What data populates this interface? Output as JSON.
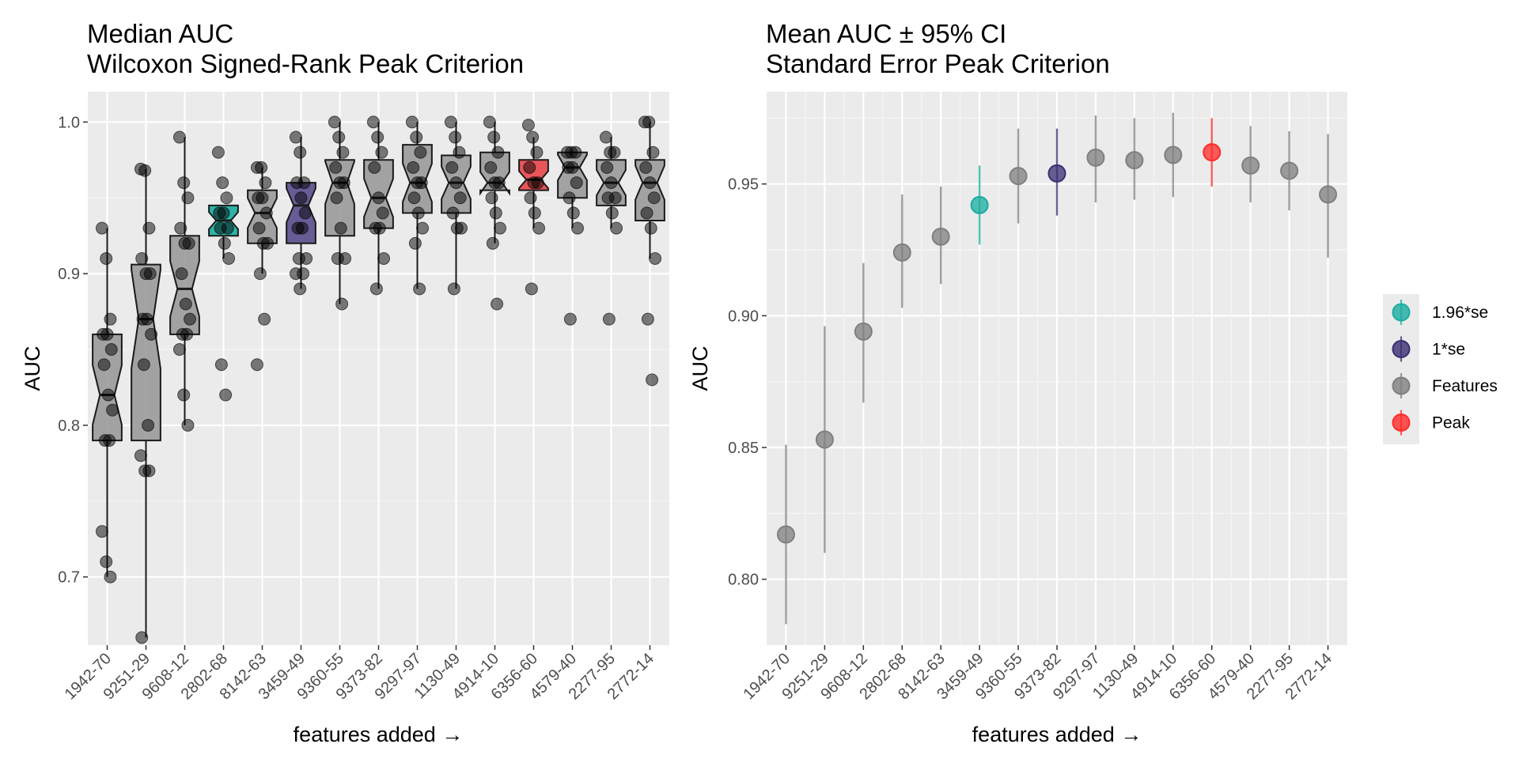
{
  "chart_data": [
    {
      "type": "boxplot",
      "title": "Median AUC",
      "subtitle": "Wilcoxon Signed-Rank Peak Criterion",
      "xlabel": "features added →",
      "ylabel": "AUC",
      "ylim": [
        0.655,
        1.02
      ],
      "yticks": [
        "0.7",
        "0.8",
        "0.9",
        "1.0"
      ],
      "categories": [
        "1942-70",
        "9251-29",
        "9608-12",
        "2802-68",
        "8142-63",
        "3459-49",
        "9360-55",
        "9373-82",
        "9297-97",
        "1130-49",
        "4914-10",
        "6356-60",
        "4579-40",
        "2277-95",
        "2772-14"
      ],
      "highlight": [
        "grey",
        "grey",
        "grey",
        "teal",
        "grey",
        "purple",
        "grey",
        "grey",
        "grey",
        "grey",
        "grey",
        "red",
        "grey",
        "grey",
        "grey"
      ],
      "boxes": [
        {
          "q1": 0.79,
          "median": 0.82,
          "q3": 0.86,
          "lo": 0.7,
          "hi": 0.93,
          "points": [
            0.93,
            0.91,
            0.87,
            0.86,
            0.86,
            0.85,
            0.84,
            0.82,
            0.81,
            0.79,
            0.79,
            0.73,
            0.71,
            0.7
          ]
        },
        {
          "q1": 0.79,
          "median": 0.87,
          "q3": 0.906,
          "lo": 0.66,
          "hi": 0.969,
          "points": [
            0.969,
            0.968,
            0.93,
            0.91,
            0.9,
            0.9,
            0.87,
            0.87,
            0.86,
            0.84,
            0.8,
            0.78,
            0.77,
            0.77,
            0.66
          ]
        },
        {
          "q1": 0.86,
          "median": 0.89,
          "q3": 0.925,
          "lo": 0.8,
          "hi": 0.99,
          "points": [
            0.99,
            0.96,
            0.95,
            0.93,
            0.92,
            0.92,
            0.9,
            0.88,
            0.87,
            0.86,
            0.86,
            0.85,
            0.82,
            0.8
          ]
        },
        {
          "q1": 0.925,
          "median": 0.935,
          "q3": 0.945,
          "lo": 0.91,
          "hi": 0.945,
          "points": [
            0.98,
            0.96,
            0.95,
            0.94,
            0.94,
            0.93,
            0.93,
            0.92,
            0.91,
            0.84,
            0.82
          ]
        },
        {
          "q1": 0.92,
          "median": 0.94,
          "q3": 0.955,
          "lo": 0.9,
          "hi": 0.97,
          "points": [
            0.97,
            0.97,
            0.96,
            0.95,
            0.95,
            0.94,
            0.93,
            0.92,
            0.92,
            0.9,
            0.87,
            0.84
          ]
        },
        {
          "q1": 0.92,
          "median": 0.945,
          "q3": 0.96,
          "lo": 0.89,
          "hi": 0.99,
          "points": [
            0.99,
            0.98,
            0.96,
            0.96,
            0.95,
            0.94,
            0.93,
            0.93,
            0.91,
            0.91,
            0.9,
            0.9,
            0.89
          ]
        },
        {
          "q1": 0.925,
          "median": 0.96,
          "q3": 0.975,
          "lo": 0.88,
          "hi": 1.0,
          "points": [
            1.0,
            0.99,
            0.98,
            0.97,
            0.96,
            0.96,
            0.95,
            0.93,
            0.91,
            0.91,
            0.88
          ]
        },
        {
          "q1": 0.93,
          "median": 0.95,
          "q3": 0.975,
          "lo": 0.89,
          "hi": 1.0,
          "points": [
            1.0,
            0.99,
            0.98,
            0.97,
            0.95,
            0.94,
            0.93,
            0.93,
            0.91,
            0.89
          ]
        },
        {
          "q1": 0.94,
          "median": 0.96,
          "q3": 0.985,
          "lo": 0.89,
          "hi": 1.0,
          "points": [
            1.0,
            0.99,
            0.98,
            0.97,
            0.96,
            0.96,
            0.95,
            0.94,
            0.93,
            0.92,
            0.89
          ]
        },
        {
          "q1": 0.94,
          "median": 0.96,
          "q3": 0.978,
          "lo": 0.89,
          "hi": 1.0,
          "points": [
            1.0,
            0.99,
            0.98,
            0.97,
            0.96,
            0.95,
            0.94,
            0.93,
            0.93,
            0.89
          ]
        },
        {
          "q1": 0.955,
          "median": 0.96,
          "q3": 0.98,
          "lo": 0.92,
          "hi": 1.0,
          "points": [
            1.0,
            0.99,
            0.98,
            0.97,
            0.96,
            0.96,
            0.95,
            0.94,
            0.93,
            0.92,
            0.88
          ]
        },
        {
          "q1": 0.955,
          "median": 0.962,
          "q3": 0.975,
          "lo": 0.93,
          "hi": 0.99,
          "points": [
            0.998,
            0.99,
            0.98,
            0.97,
            0.96,
            0.96,
            0.95,
            0.94,
            0.93,
            0.89
          ]
        },
        {
          "q1": 0.95,
          "median": 0.97,
          "q3": 0.98,
          "lo": 0.93,
          "hi": 0.98,
          "points": [
            0.98,
            0.98,
            0.98,
            0.97,
            0.97,
            0.96,
            0.95,
            0.94,
            0.93,
            0.87
          ]
        },
        {
          "q1": 0.945,
          "median": 0.96,
          "q3": 0.975,
          "lo": 0.93,
          "hi": 0.99,
          "points": [
            0.99,
            0.98,
            0.98,
            0.97,
            0.96,
            0.95,
            0.95,
            0.94,
            0.93,
            0.87
          ]
        },
        {
          "q1": 0.935,
          "median": 0.96,
          "q3": 0.975,
          "lo": 0.91,
          "hi": 1.0,
          "points": [
            1.0,
            1.0,
            0.98,
            0.97,
            0.96,
            0.95,
            0.94,
            0.93,
            0.91,
            0.87,
            0.83
          ]
        }
      ]
    },
    {
      "type": "errorbar",
      "title": "Mean AUC ± 95% CI",
      "subtitle": "Standard Error Peak Criterion",
      "xlabel": "features added →",
      "ylabel": "AUC",
      "ylim": [
        0.775,
        0.985
      ],
      "yticks": [
        "0.80",
        "0.85",
        "0.90",
        "0.95"
      ],
      "categories": [
        "1942-70",
        "9251-29",
        "9608-12",
        "2802-68",
        "8142-63",
        "3459-49",
        "9360-55",
        "9373-82",
        "9297-97",
        "1130-49",
        "4914-10",
        "6356-60",
        "4579-40",
        "2277-95",
        "2772-14"
      ],
      "series": [
        {
          "x": "1942-70",
          "mean": 0.817,
          "lo": 0.783,
          "hi": 0.851,
          "group": "Features"
        },
        {
          "x": "9251-29",
          "mean": 0.853,
          "lo": 0.81,
          "hi": 0.896,
          "group": "Features"
        },
        {
          "x": "9608-12",
          "mean": 0.894,
          "lo": 0.867,
          "hi": 0.92,
          "group": "Features"
        },
        {
          "x": "2802-68",
          "mean": 0.924,
          "lo": 0.903,
          "hi": 0.946,
          "group": "Features"
        },
        {
          "x": "8142-63",
          "mean": 0.93,
          "lo": 0.912,
          "hi": 0.949,
          "group": "Features"
        },
        {
          "x": "3459-49",
          "mean": 0.942,
          "lo": 0.927,
          "hi": 0.957,
          "group": "1.96*se"
        },
        {
          "x": "9360-55",
          "mean": 0.953,
          "lo": 0.935,
          "hi": 0.971,
          "group": "Features"
        },
        {
          "x": "9373-82",
          "mean": 0.954,
          "lo": 0.938,
          "hi": 0.971,
          "group": "1*se"
        },
        {
          "x": "9297-97",
          "mean": 0.96,
          "lo": 0.943,
          "hi": 0.976,
          "group": "Features"
        },
        {
          "x": "1130-49",
          "mean": 0.959,
          "lo": 0.944,
          "hi": 0.975,
          "group": "Features"
        },
        {
          "x": "4914-10",
          "mean": 0.961,
          "lo": 0.945,
          "hi": 0.977,
          "group": "Features"
        },
        {
          "x": "6356-60",
          "mean": 0.962,
          "lo": 0.949,
          "hi": 0.975,
          "group": "Peak"
        },
        {
          "x": "4579-40",
          "mean": 0.957,
          "lo": 0.943,
          "hi": 0.972,
          "group": "Features"
        },
        {
          "x": "2277-95",
          "mean": 0.955,
          "lo": 0.94,
          "hi": 0.97,
          "group": "Features"
        },
        {
          "x": "2772-14",
          "mean": 0.946,
          "lo": 0.922,
          "hi": 0.969,
          "group": "Features"
        }
      ],
      "legend": {
        "placement": "right",
        "items": [
          {
            "label": "1.96*se",
            "color": "#1aada0"
          },
          {
            "label": "1*se",
            "color": "#3b2e72"
          },
          {
            "label": "Features",
            "color": "#7f7f7f"
          },
          {
            "label": "Peak",
            "color": "#ff2a2a"
          }
        ]
      }
    }
  ],
  "colors": {
    "grey_box": "#9a9a9a",
    "teal": "#1aada0",
    "purple": "#5b4d8c",
    "red": "#e8464a",
    "panel_bg": "#ebebeb",
    "grid": "#ffffff"
  }
}
